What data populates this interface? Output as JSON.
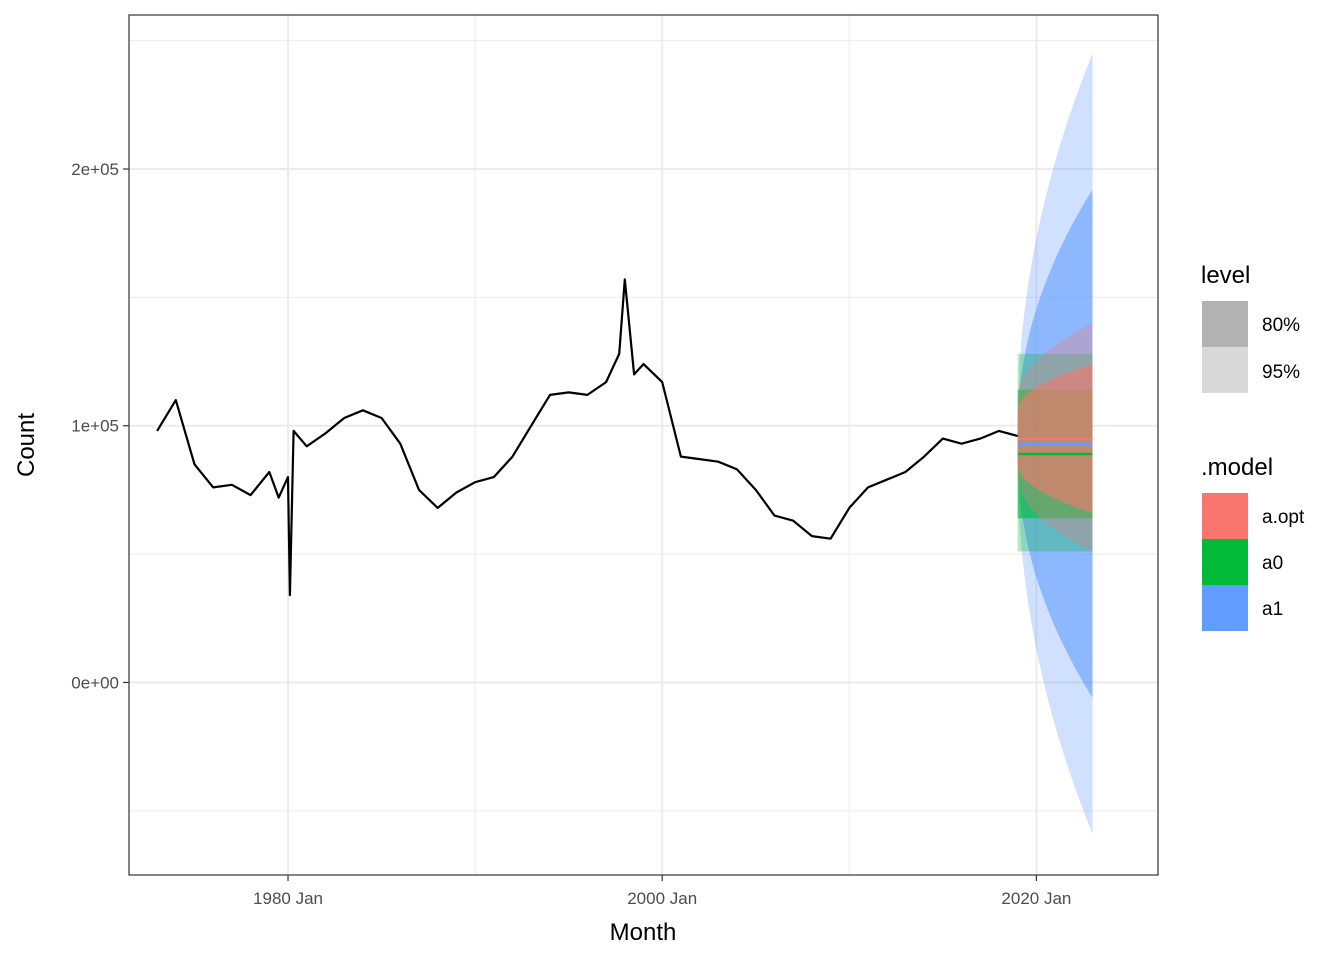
{
  "chart_data": {
    "type": "line",
    "xlabel": "Month",
    "ylabel": "Count",
    "x_range": [
      1971.5,
      2026.5
    ],
    "y_range": [
      -75000,
      260000
    ],
    "x_ticks": [
      {
        "value": 1980,
        "label": "1980 Jan"
      },
      {
        "value": 2000,
        "label": "2000 Jan"
      },
      {
        "value": 2020,
        "label": "2020 Jan"
      }
    ],
    "x_minor_ticks": [
      1990,
      2010
    ],
    "y_ticks": [
      {
        "value": 0,
        "label": "0e+00"
      },
      {
        "value": 100000,
        "label": "1e+05"
      },
      {
        "value": 200000,
        "label": "2e+05"
      }
    ],
    "y_minor_ticks": [
      -50000,
      50000,
      150000,
      250000
    ],
    "grid": true,
    "history": {
      "color": "#000000",
      "x": [
        1973.0,
        1974.0,
        1975.0,
        1976.0,
        1977.0,
        1978.0,
        1979.0,
        1979.5,
        1980.0,
        1980.1,
        1980.3,
        1981.0,
        1982.0,
        1983.0,
        1984.0,
        1985.0,
        1986.0,
        1987.0,
        1988.0,
        1989.0,
        1990.0,
        1991.0,
        1992.0,
        1993.0,
        1994.0,
        1995.0,
        1996.0,
        1997.0,
        1997.7,
        1998.0,
        1998.5,
        1999.0,
        2000.0,
        2001.0,
        2002.0,
        2003.0,
        2004.0,
        2005.0,
        2006.0,
        2007.0,
        2008.0,
        2009.0,
        2010.0,
        2011.0,
        2012.0,
        2013.0,
        2014.0,
        2015.0,
        2016.0,
        2017.0,
        2018.0,
        2019.0
      ],
      "y": [
        98000,
        110000,
        85000,
        76000,
        77000,
        73000,
        82000,
        72000,
        80000,
        34000,
        98000,
        92000,
        97000,
        103000,
        106000,
        103000,
        93000,
        75000,
        68000,
        74000,
        78000,
        80000,
        88000,
        100000,
        112000,
        113000,
        112000,
        117000,
        128000,
        157000,
        120000,
        124000,
        117000,
        88000,
        87000,
        86000,
        83000,
        75000,
        65000,
        63000,
        57000,
        56000,
        68000,
        76000,
        79000,
        82000,
        88000,
        95000,
        93000,
        95000,
        98000,
        96000
      ]
    },
    "forecast_start": 2019.0,
    "forecast_end": 2023.0,
    "series": [
      {
        "name": "a.opt",
        "color": "#F8766D",
        "mean": 95000,
        "pi80_start": [
          85000,
          106000
        ],
        "pi80_end": [
          66000,
          124000
        ],
        "pi95_start": [
          80000,
          111000
        ],
        "pi95_end": [
          51000,
          140000
        ]
      },
      {
        "name": "a0",
        "color": "#00BA38",
        "mean": 89000,
        "pi80_start": [
          64000,
          114000
        ],
        "pi80_end": [
          64000,
          114000
        ],
        "pi95_start": [
          51000,
          128000
        ],
        "pi95_end": [
          51000,
          128000
        ]
      },
      {
        "name": "a1",
        "color": "#619CFF",
        "mean": 93000,
        "pi80_start": [
          88000,
          99000
        ],
        "pi80_end": [
          -6000,
          192000
        ],
        "pi95_start": [
          85000,
          101000
        ],
        "pi95_end": [
          -59000,
          245000
        ]
      }
    ]
  },
  "legend": {
    "level_title": "level",
    "level_items": [
      {
        "label": "80%",
        "color": "#b3b3b3"
      },
      {
        "label": "95%",
        "color": "#d9d9d9"
      }
    ],
    "model_title": ".model",
    "model_items": [
      {
        "label": "a.opt",
        "color": "#F8766D"
      },
      {
        "label": "a0",
        "color": "#00BA38"
      },
      {
        "label": "a1",
        "color": "#619CFF"
      }
    ]
  }
}
